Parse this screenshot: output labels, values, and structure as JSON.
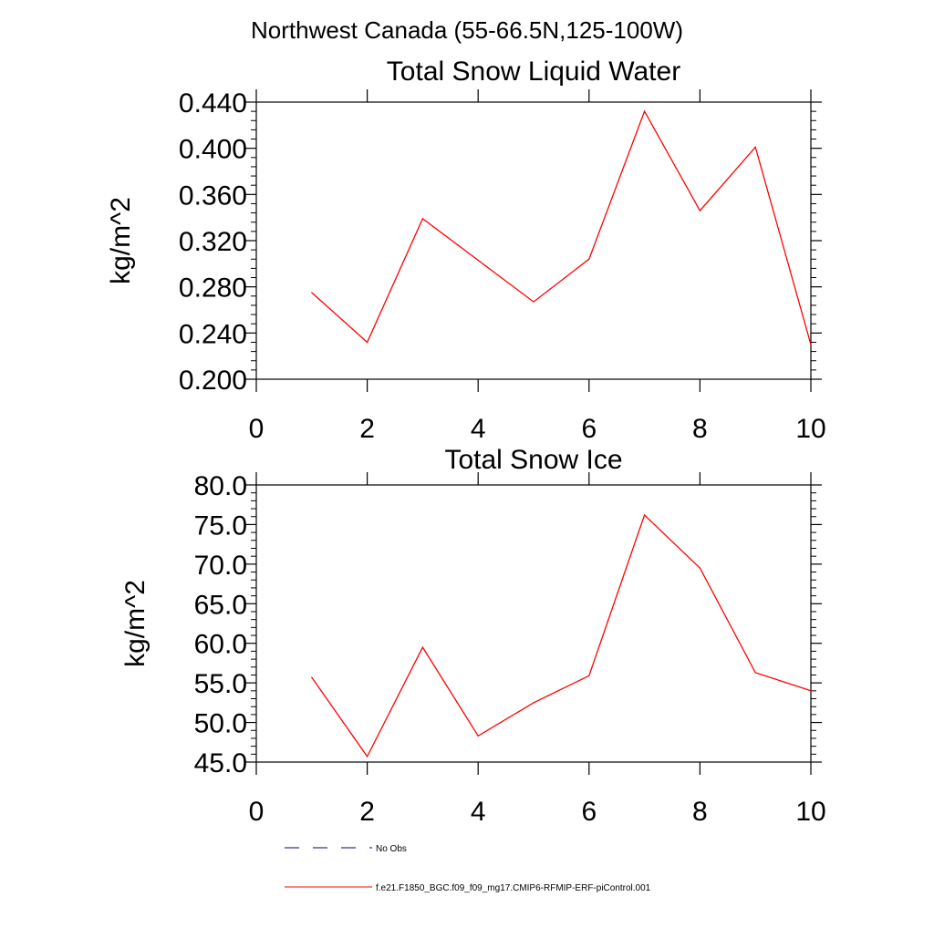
{
  "figure": {
    "suptitle": "Northwest Canada (55-66.5N,125-100W)"
  },
  "colors": {
    "series_line": "#ff0000",
    "obs_line": "#000080",
    "axis": "#000000"
  },
  "chart_data": [
    {
      "type": "line",
      "title": "Total Snow Liquid Water",
      "xlabel": "",
      "ylabel": "kg/m^2",
      "xlim": [
        0,
        10
      ],
      "ylim": [
        0.2,
        0.44
      ],
      "xticks": [
        0,
        2,
        4,
        6,
        8,
        10
      ],
      "yticks": [
        0.2,
        0.24,
        0.28,
        0.32,
        0.36,
        0.4,
        0.44
      ],
      "xtick_labels": [
        "0",
        "2",
        "4",
        "6",
        "8",
        "10"
      ],
      "ytick_labels": [
        "0.200",
        "0.240",
        "0.280",
        "0.320",
        "0.360",
        "0.400",
        "0.440"
      ],
      "grid": false,
      "series": [
        {
          "name": "f.e21.F1850_BGC.f09_f09_mg17.CMIP6-RFMIP-ERF-piControl.001",
          "x": [
            1,
            2,
            3,
            4,
            5,
            6,
            7,
            8,
            9,
            10
          ],
          "y": [
            0.275,
            0.232,
            0.339,
            0.303,
            0.267,
            0.304,
            0.432,
            0.346,
            0.401,
            0.23
          ]
        }
      ]
    },
    {
      "type": "line",
      "title": "Total Snow Ice",
      "xlabel": "",
      "ylabel": "kg/m^2",
      "xlim": [
        0,
        10
      ],
      "ylim": [
        45,
        80
      ],
      "xticks": [
        0,
        2,
        4,
        6,
        8,
        10
      ],
      "yticks": [
        45,
        50,
        55,
        60,
        65,
        70,
        75,
        80
      ],
      "xtick_labels": [
        "0",
        "2",
        "4",
        "6",
        "8",
        "10"
      ],
      "ytick_labels": [
        "45.0",
        "50.0",
        "55.0",
        "60.0",
        "65.0",
        "70.0",
        "75.0",
        "80.0"
      ],
      "grid": false,
      "series": [
        {
          "name": "f.e21.F1850_BGC.f09_f09_mg17.CMIP6-RFMIP-ERF-piControl.001",
          "x": [
            1,
            2,
            3,
            4,
            5,
            6,
            7,
            8,
            9,
            10
          ],
          "y": [
            55.7,
            45.7,
            59.5,
            48.3,
            52.5,
            55.9,
            76.2,
            69.5,
            56.3,
            54.0
          ]
        }
      ]
    }
  ],
  "legend": {
    "placement": "bottom",
    "items": [
      {
        "label": "No Obs",
        "style": "dashed",
        "color": "#000080"
      },
      {
        "label": "f.e21.F1850_BGC.f09_f09_mg17.CMIP6-RFMIP-ERF-piControl.001",
        "style": "solid",
        "color": "#ff0000"
      }
    ]
  }
}
